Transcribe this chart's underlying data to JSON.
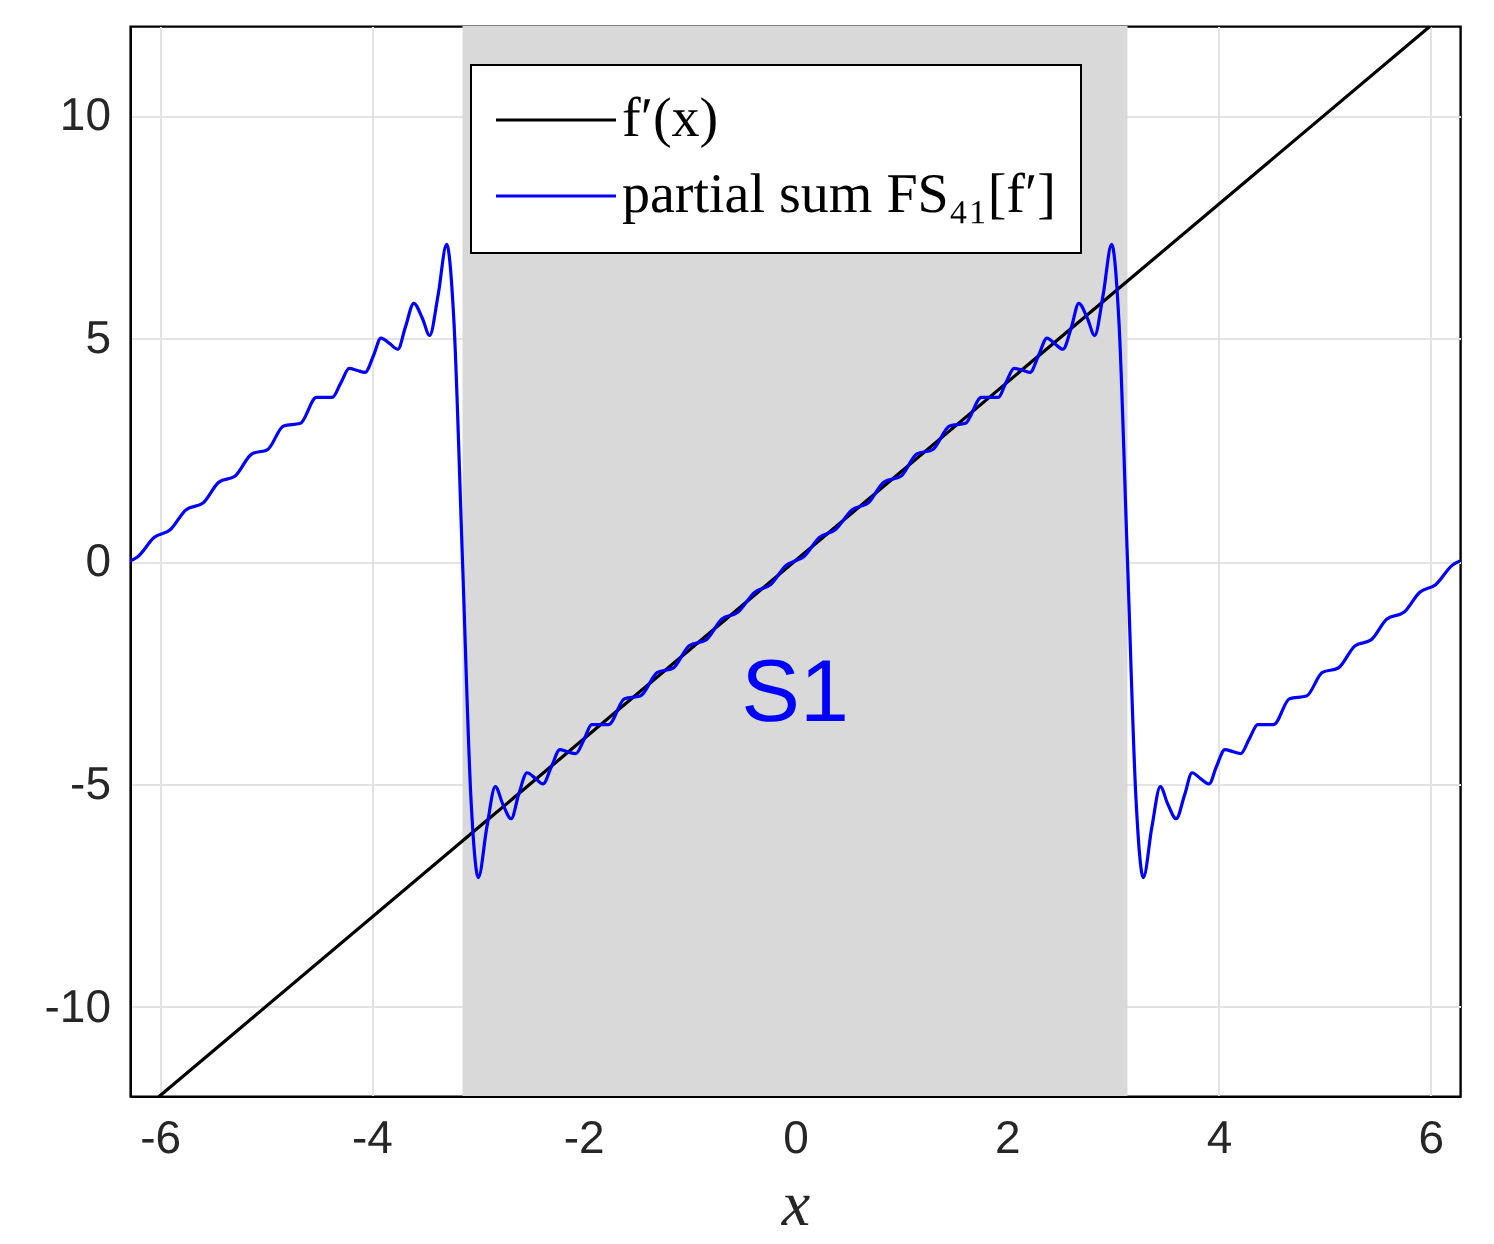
{
  "chart_data": {
    "type": "line",
    "xlabel": "x",
    "xlim": [
      -6.28,
      6.28
    ],
    "ylim": [
      -12,
      12
    ],
    "xticks": [
      -6,
      -4,
      -2,
      0,
      2,
      4,
      6
    ],
    "yticks": [
      -10,
      -5,
      0,
      5,
      10
    ],
    "grid": true,
    "legend": "top",
    "bands": [
      {
        "axis": "x",
        "from": -3.14,
        "to": 3.14,
        "label": "S1",
        "color": "#d9d9d9"
      }
    ],
    "series": [
      {
        "name": "f′(x)",
        "color": "#000000",
        "x": [
          -6,
          0,
          6
        ],
        "values": [
          -12,
          0,
          12
        ]
      },
      {
        "name": "partial sum FS₄₁[f′]",
        "color": "#0000ff",
        "x": [
          -6.28,
          -6.21,
          -6.05,
          -5.9,
          -5.75,
          -5.59,
          -5.44,
          -5.29,
          -5.13,
          -4.98,
          -4.83,
          -4.67,
          -4.52,
          -4.44,
          -4.37,
          -4.29,
          -4.21,
          -4.14,
          -4.06,
          -3.98,
          -3.91,
          -3.83,
          -3.75,
          -3.68,
          -3.6,
          -3.52,
          -3.45,
          -3.37,
          -3.29,
          -3.22,
          -3.14,
          -3.06,
          -2.99,
          -2.91,
          -2.83,
          -2.76,
          -2.68,
          -2.61,
          -2.53,
          -2.45,
          -2.38,
          -2.3,
          -2.22,
          -2.15,
          -2.07,
          -1.99,
          -1.92,
          -1.84,
          -1.76,
          -1.61,
          -1.46,
          -1.3,
          -1.15,
          -1.0,
          -0.84,
          -0.69,
          -0.54,
          -0.38,
          -0.23,
          -0.08,
          0,
          0.08,
          0.23,
          0.38,
          0.54,
          0.69,
          0.84,
          1.0,
          1.15,
          1.3,
          1.46,
          1.61,
          1.76,
          1.84,
          1.92,
          1.99,
          2.07,
          2.15,
          2.22,
          2.3,
          2.38,
          2.45,
          2.53,
          2.61,
          2.68,
          2.76,
          2.83,
          2.91,
          2.99,
          3.06,
          3.14,
          3.22,
          3.29,
          3.37,
          3.45,
          3.52,
          3.6,
          3.68,
          3.75,
          3.83,
          3.91,
          3.98,
          4.06,
          4.14,
          4.21,
          4.29,
          4.37,
          4.44,
          4.52,
          4.67,
          4.83,
          4.98,
          5.13,
          5.29,
          5.44,
          5.59,
          5.75,
          5.9,
          6.05,
          6.21,
          6.28
        ],
        "values": [
          0,
          0.09,
          0.53,
          0.7,
          1.15,
          1.3,
          1.77,
          1.9,
          2.4,
          2.5,
          3.03,
          3.09,
          3.67,
          3.67,
          3.67,
          3.99,
          4.32,
          4.28,
          4.23,
          4.61,
          5.0,
          4.88,
          4.75,
          5.24,
          5.78,
          5.45,
          5.06,
          5.97,
          7.1,
          5.33,
          0,
          -5.33,
          -7.1,
          -5.97,
          -5.06,
          -5.45,
          -5.78,
          -5.24,
          -4.75,
          -4.88,
          -5.0,
          -4.61,
          -4.23,
          -4.28,
          -4.32,
          -3.99,
          -3.67,
          -3.67,
          -3.67,
          -3.09,
          -3.03,
          -2.5,
          -2.4,
          -1.9,
          -1.77,
          -1.3,
          -1.15,
          -0.7,
          -0.53,
          -0.09,
          0,
          0.09,
          0.53,
          0.7,
          1.15,
          1.3,
          1.77,
          1.9,
          2.4,
          2.5,
          3.03,
          3.09,
          3.67,
          3.67,
          3.67,
          3.99,
          4.32,
          4.28,
          4.23,
          4.61,
          5.0,
          4.88,
          4.75,
          5.24,
          5.78,
          5.45,
          5.06,
          5.97,
          7.1,
          5.33,
          0,
          -5.33,
          -7.1,
          -5.97,
          -5.06,
          -5.45,
          -5.78,
          -5.24,
          -4.75,
          -4.88,
          -5.0,
          -4.61,
          -4.23,
          -4.28,
          -4.32,
          -3.99,
          -3.67,
          -3.67,
          -3.67,
          -3.09,
          -3.03,
          -2.5,
          -2.4,
          -1.9,
          -1.77,
          -1.3,
          -1.15,
          -0.7,
          -0.53,
          -0.09,
          0
        ]
      }
    ]
  }
}
